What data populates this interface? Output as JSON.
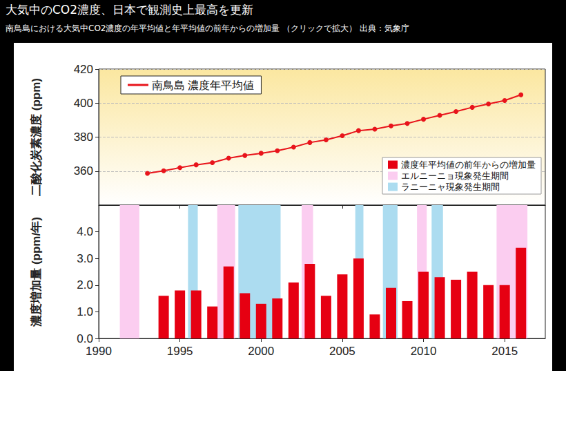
{
  "header": {
    "title": "大気中のCO2濃度、日本で観測史上最高を更新",
    "subtitle": "南鳥島における大気中CO2濃度の年平均値と年平均値の前年からの増加量 （クリックで拡大） 出典：気象庁"
  },
  "chart_data": [
    {
      "type": "line",
      "y_label": "二酸化炭素濃度 (ppm)",
      "x": [
        1993,
        1994,
        1995,
        1996,
        1997,
        1998,
        1999,
        2000,
        2001,
        2002,
        2003,
        2004,
        2005,
        2006,
        2007,
        2008,
        2009,
        2010,
        2011,
        2012,
        2013,
        2014,
        2015,
        2016
      ],
      "series": [
        {
          "name": "南鳥島 濃度年平均値",
          "color": "#e8141b",
          "marker": "circle",
          "values": [
            358.7,
            360.2,
            362.0,
            363.7,
            365.0,
            367.6,
            369.2,
            370.5,
            372.0,
            374.1,
            376.8,
            378.4,
            380.8,
            383.8,
            384.7,
            386.6,
            388.0,
            390.5,
            392.8,
            395.0,
            397.5,
            399.5,
            401.5,
            404.9
          ]
        }
      ],
      "xlim": [
        1990,
        2017.5
      ],
      "xticks": [
        1990,
        1995,
        2000,
        2005,
        2010,
        2015
      ],
      "ylim": [
        340,
        420
      ],
      "yticks": [
        360,
        380,
        400,
        420
      ],
      "grid": true,
      "legend": "upper left",
      "tick_labels": "y"
    },
    {
      "type": "bar",
      "y_label": "濃度増加量 (ppm/年)",
      "x": [
        1994,
        1995,
        1996,
        1997,
        1998,
        1999,
        2000,
        2001,
        2002,
        2003,
        2004,
        2005,
        2006,
        2007,
        2008,
        2009,
        2010,
        2011,
        2012,
        2013,
        2014,
        2015,
        2016
      ],
      "series": [
        {
          "name": "濃度年平均値の前年からの増加量",
          "color": "#e60012",
          "values": [
            1.6,
            1.8,
            1.8,
            1.2,
            2.7,
            1.7,
            1.3,
            1.5,
            2.1,
            2.8,
            1.6,
            2.4,
            3.0,
            0.9,
            1.9,
            1.4,
            2.5,
            2.3,
            2.2,
            2.5,
            2.0,
            2.0,
            3.4
          ]
        }
      ],
      "periods": [
        {
          "name": "エルニーニョ現象発生期間",
          "color": "#fbcdf0",
          "ranges": [
            [
              1991.3,
              1992.5
            ],
            [
              1997.3,
              1998.4
            ],
            [
              2002.5,
              2003.2
            ],
            [
              2009.6,
              2010.2
            ],
            [
              2014.5,
              2016.4
            ]
          ]
        },
        {
          "name": "ラニーニャ現象発生期間",
          "color": "#acdcf0",
          "ranges": [
            [
              1995.5,
              1996.1
            ],
            [
              1998.6,
              2001.2
            ],
            [
              2005.8,
              2006.3
            ],
            [
              2007.5,
              2008.4
            ],
            [
              2010.5,
              2011.2
            ]
          ]
        }
      ],
      "xlim": [
        1990,
        2017.5
      ],
      "xticks": [
        1990,
        1995,
        2000,
        2005,
        2010,
        2015
      ],
      "ylim": [
        0,
        5
      ],
      "yticks": [
        {
          "value": 0,
          "label": "0.0"
        },
        {
          "value": 1,
          "label": "1.0"
        },
        {
          "value": 2,
          "label": "2.0"
        },
        {
          "value": 3,
          "label": "3.0"
        },
        {
          "value": 4,
          "label": "4.0"
        }
      ],
      "grid": false,
      "legend": "upper right"
    }
  ]
}
